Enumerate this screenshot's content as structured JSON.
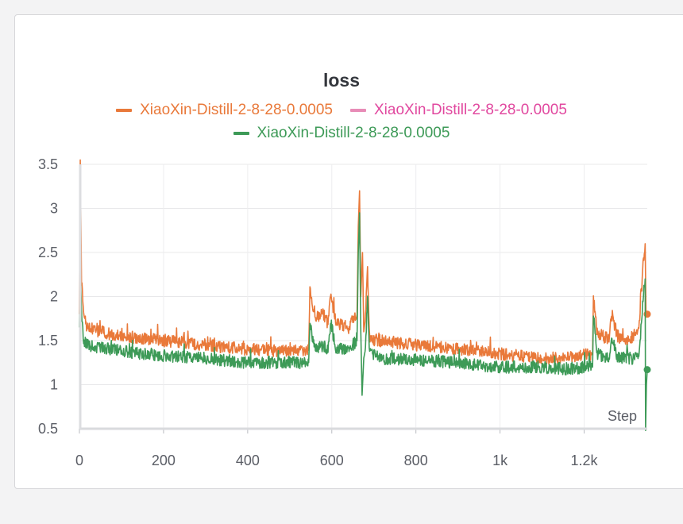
{
  "chart_data": {
    "type": "line",
    "title": "loss",
    "xlabel": "Step",
    "ylabel": "",
    "xlim": [
      0,
      1350
    ],
    "ylim": [
      0.5,
      3.5
    ],
    "x_ticks": [
      0,
      200,
      400,
      600,
      800,
      1000,
      1200
    ],
    "x_tick_labels": [
      "0",
      "200",
      "400",
      "600",
      "800",
      "1k",
      "1.2k"
    ],
    "y_ticks": [
      0.5,
      1,
      1.5,
      2,
      2.5,
      3,
      3.5
    ],
    "y_tick_labels": [
      "0.5",
      "1",
      "1.5",
      "2",
      "2.5",
      "3",
      "3.5"
    ],
    "grid": true,
    "legend_position": "top",
    "series": [
      {
        "name": "XiaoXin-Distill-2-8-28-0.0005",
        "color": "#e9793a",
        "points": [
          [
            0,
            1.8
          ],
          [
            2,
            3.55
          ],
          [
            5,
            2.2
          ],
          [
            10,
            1.75
          ],
          [
            20,
            1.65
          ],
          [
            50,
            1.6
          ],
          [
            100,
            1.55
          ],
          [
            200,
            1.5
          ],
          [
            300,
            1.45
          ],
          [
            400,
            1.4
          ],
          [
            500,
            1.38
          ],
          [
            545,
            1.4
          ],
          [
            548,
            2.05
          ],
          [
            560,
            1.75
          ],
          [
            580,
            1.8
          ],
          [
            590,
            1.7
          ],
          [
            598,
            2.0
          ],
          [
            610,
            1.7
          ],
          [
            640,
            1.65
          ],
          [
            660,
            1.8
          ],
          [
            663,
            2.8
          ],
          [
            666,
            3.2
          ],
          [
            669,
            2.0
          ],
          [
            673,
            2.5
          ],
          [
            676,
            1.6
          ],
          [
            680,
            1.75
          ],
          [
            685,
            2.35
          ],
          [
            690,
            1.5
          ],
          [
            720,
            1.5
          ],
          [
            800,
            1.45
          ],
          [
            900,
            1.4
          ],
          [
            1000,
            1.35
          ],
          [
            1100,
            1.3
          ],
          [
            1150,
            1.3
          ],
          [
            1220,
            1.35
          ],
          [
            1222,
            2.02
          ],
          [
            1230,
            1.6
          ],
          [
            1260,
            1.5
          ],
          [
            1265,
            1.8
          ],
          [
            1280,
            1.55
          ],
          [
            1300,
            1.5
          ],
          [
            1330,
            1.6
          ],
          [
            1340,
            2.35
          ],
          [
            1345,
            2.6
          ],
          [
            1347,
            1.8
          ],
          [
            1350,
            1.8
          ]
        ]
      },
      {
        "name": "XiaoXin-Distill-2-8-28-0.0005",
        "color": "#e1489f",
        "points": []
      },
      {
        "name": "XiaoXin-Distill-2-8-28-0.0005",
        "color": "#3d9a57",
        "points": [
          [
            0,
            1.65
          ],
          [
            2,
            2.42
          ],
          [
            5,
            1.8
          ],
          [
            10,
            1.5
          ],
          [
            20,
            1.45
          ],
          [
            50,
            1.42
          ],
          [
            100,
            1.38
          ],
          [
            200,
            1.33
          ],
          [
            300,
            1.3
          ],
          [
            400,
            1.25
          ],
          [
            500,
            1.25
          ],
          [
            545,
            1.25
          ],
          [
            548,
            1.7
          ],
          [
            560,
            1.4
          ],
          [
            580,
            1.45
          ],
          [
            590,
            1.38
          ],
          [
            598,
            1.7
          ],
          [
            610,
            1.4
          ],
          [
            640,
            1.4
          ],
          [
            660,
            1.5
          ],
          [
            663,
            2.5
          ],
          [
            666,
            2.95
          ],
          [
            669,
            1.6
          ],
          [
            672,
            0.88
          ],
          [
            676,
            1.3
          ],
          [
            680,
            1.4
          ],
          [
            685,
            2.0
          ],
          [
            690,
            1.35
          ],
          [
            720,
            1.3
          ],
          [
            800,
            1.28
          ],
          [
            900,
            1.25
          ],
          [
            1000,
            1.2
          ],
          [
            1100,
            1.2
          ],
          [
            1150,
            1.18
          ],
          [
            1220,
            1.2
          ],
          [
            1222,
            1.8
          ],
          [
            1230,
            1.35
          ],
          [
            1260,
            1.3
          ],
          [
            1265,
            1.55
          ],
          [
            1280,
            1.3
          ],
          [
            1300,
            1.3
          ],
          [
            1330,
            1.3
          ],
          [
            1340,
            2.0
          ],
          [
            1345,
            2.2
          ],
          [
            1346,
            0.48
          ],
          [
            1348,
            1.0
          ],
          [
            1350,
            1.17
          ]
        ]
      }
    ]
  }
}
